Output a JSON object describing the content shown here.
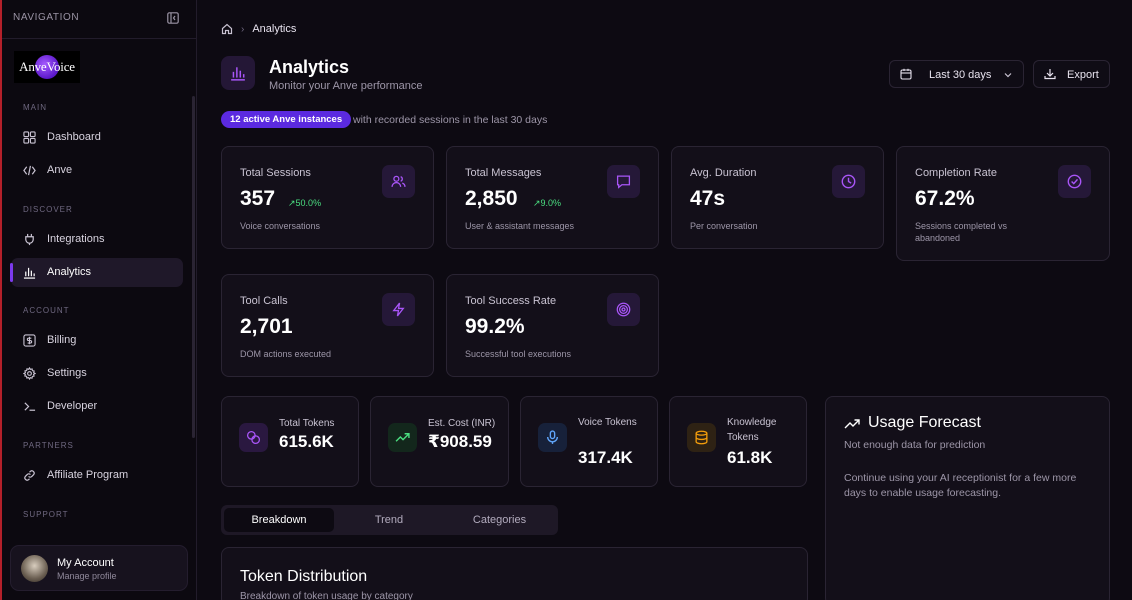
{
  "sidebar": {
    "header": "NAVIGATION",
    "logo_text": "AnveVoice",
    "sections": {
      "main": "MAIN",
      "discover": "DISCOVER",
      "account": "ACCOUNT",
      "partners": "PARTNERS",
      "support": "SUPPORT"
    },
    "items": {
      "dashboard": "Dashboard",
      "anve": "Anve",
      "integrations": "Integrations",
      "analytics": "Analytics",
      "billing": "Billing",
      "settings": "Settings",
      "developer": "Developer",
      "affiliate": "Affiliate Program"
    },
    "account": {
      "name": "My Account",
      "sub": "Manage profile"
    }
  },
  "breadcrumb": {
    "current": "Analytics"
  },
  "header": {
    "title": "Analytics",
    "subtitle": "Monitor your Anve performance",
    "range_label": "Last 30 days",
    "export_label": "Export"
  },
  "instances": {
    "badge": "12 active Anve instances",
    "text": "with recorded sessions in the last 30 days"
  },
  "stats": [
    {
      "label": "Total Sessions",
      "value": "357",
      "trend": "50.0%",
      "sub": "Voice conversations"
    },
    {
      "label": "Total Messages",
      "value": "2,850",
      "trend": "9.0%",
      "sub": "User & assistant messages"
    },
    {
      "label": "Avg. Duration",
      "value": "47s",
      "trend": "",
      "sub": "Per conversation"
    },
    {
      "label": "Completion Rate",
      "value": "67.2%",
      "trend": "",
      "sub": "Sessions completed vs abandoned"
    },
    {
      "label": "Tool Calls",
      "value": "2,701",
      "trend": "",
      "sub": "DOM actions executed"
    },
    {
      "label": "Tool Success Rate",
      "value": "99.2%",
      "trend": "",
      "sub": "Successful tool executions"
    }
  ],
  "tokens": [
    {
      "label": "Total Tokens",
      "value": "615.6K"
    },
    {
      "label": "Est. Cost (INR)",
      "value": "₹908.59"
    },
    {
      "label": "Voice Tokens",
      "value": "317.4K"
    },
    {
      "label": "Knowledge Tokens",
      "value": "61.8K"
    }
  ],
  "forecast": {
    "title": "Usage Forecast",
    "subtitle": "Not enough data for prediction",
    "body": "Continue using your AI receptionist for a few more days to enable usage forecasting."
  },
  "tabs": [
    "Breakdown",
    "Trend",
    "Categories"
  ],
  "distribution": {
    "title": "Token Distribution",
    "subtitle": "Breakdown of token usage by category"
  },
  "colors": {
    "accent": "#7c3aed",
    "badge": "#5b2ae0",
    "trend_up": "#4ade80",
    "icon_purple": "#a855f7",
    "icon_blue": "#60a5fa",
    "icon_amber": "#f59e0b",
    "icon_green": "#4ade80"
  }
}
